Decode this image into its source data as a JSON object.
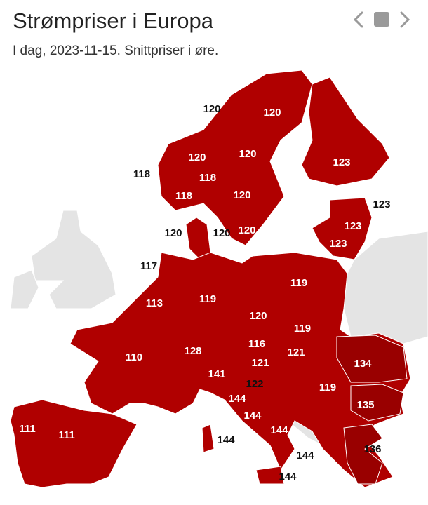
{
  "header": {
    "title": "Strømpriser i Europa",
    "subtitle": "I dag, 2023-11-15. Snittpriser i øre."
  },
  "map": {
    "labels": [
      120,
      120,
      123,
      120,
      120,
      118,
      118,
      118,
      120,
      123,
      123,
      120,
      120,
      120,
      123,
      117,
      119,
      119,
      113,
      120,
      119,
      116,
      121,
      110,
      128,
      134,
      141,
      121,
      122,
      119,
      135,
      144,
      144,
      111,
      111,
      144,
      144,
      136,
      144,
      144
    ]
  }
}
